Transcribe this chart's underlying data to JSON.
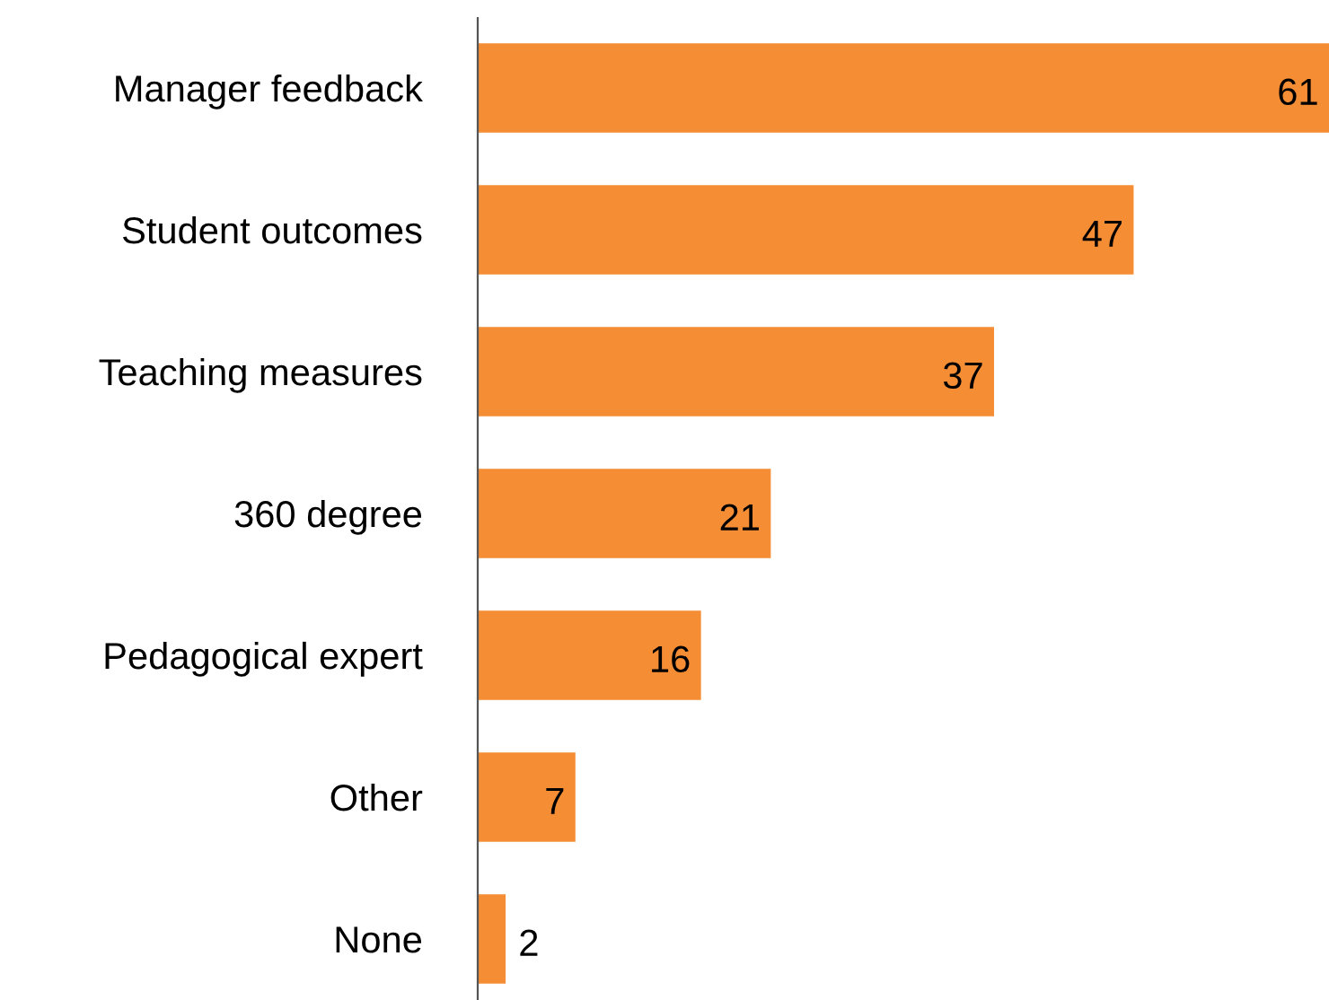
{
  "chart_data": {
    "type": "bar",
    "orientation": "horizontal",
    "categories": [
      "Manager feedback",
      "Student outcomes",
      "Teaching measures",
      "360 degree",
      "Pedagogical expert",
      "Other",
      "None"
    ],
    "values": [
      61,
      47,
      37,
      21,
      16,
      7,
      2
    ],
    "color": "#f58d34",
    "data_labels": true,
    "grid": false,
    "legend": false
  }
}
